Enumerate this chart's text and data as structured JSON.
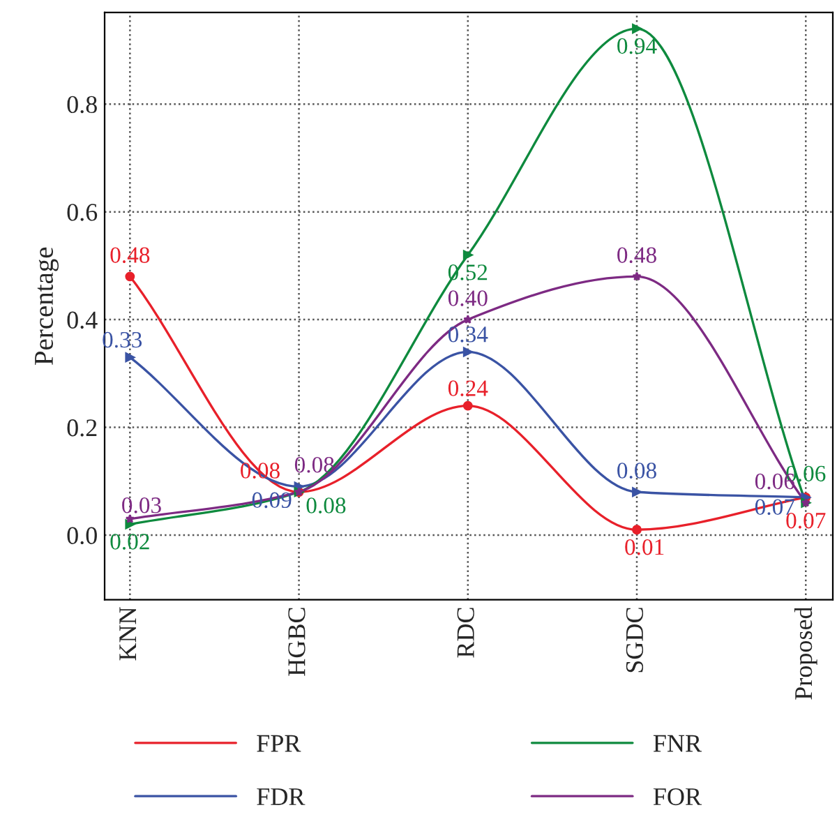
{
  "chart_data": {
    "type": "line",
    "ylabel": "Percentage",
    "categories": [
      "KNN",
      "HGBC",
      "RDC",
      "SGDC",
      "Proposed"
    ],
    "series": [
      {
        "name": "FPR",
        "color": "#e8202a",
        "marker": "circle",
        "values": [
          0.48,
          0.08,
          0.24,
          0.01,
          0.07
        ],
        "value_labels": [
          "0.48",
          "0.08",
          "0.24",
          "0.01",
          "0.07"
        ]
      },
      {
        "name": "FDR",
        "color": "#3a53a4",
        "marker": "triangle",
        "values": [
          0.33,
          0.09,
          0.34,
          0.08,
          0.07
        ],
        "value_labels": [
          "0.33",
          "0.09",
          "0.34",
          "0.08",
          "0.07"
        ]
      },
      {
        "name": "FNR",
        "color": "#0e8a3e",
        "marker": "triangle",
        "values": [
          0.02,
          0.08,
          0.52,
          0.94,
          0.06
        ],
        "value_labels": [
          "0.02",
          "0.08",
          "0.52",
          "0.94",
          "0.06"
        ]
      },
      {
        "name": "FOR",
        "color": "#7d2a83",
        "marker": "star",
        "values": [
          0.03,
          0.08,
          0.4,
          0.48,
          0.06
        ],
        "value_labels": [
          "0.03",
          "0.08",
          "0.40",
          "0.48",
          "0.06"
        ]
      }
    ],
    "ylim": [
      -0.12,
      0.97
    ],
    "yticks": [
      {
        "value": 0,
        "label": "0.0"
      },
      0.2,
      0.4,
      0.6,
      0.8
    ],
    "grid": true,
    "legend": "bottom",
    "line_style": "solid"
  }
}
